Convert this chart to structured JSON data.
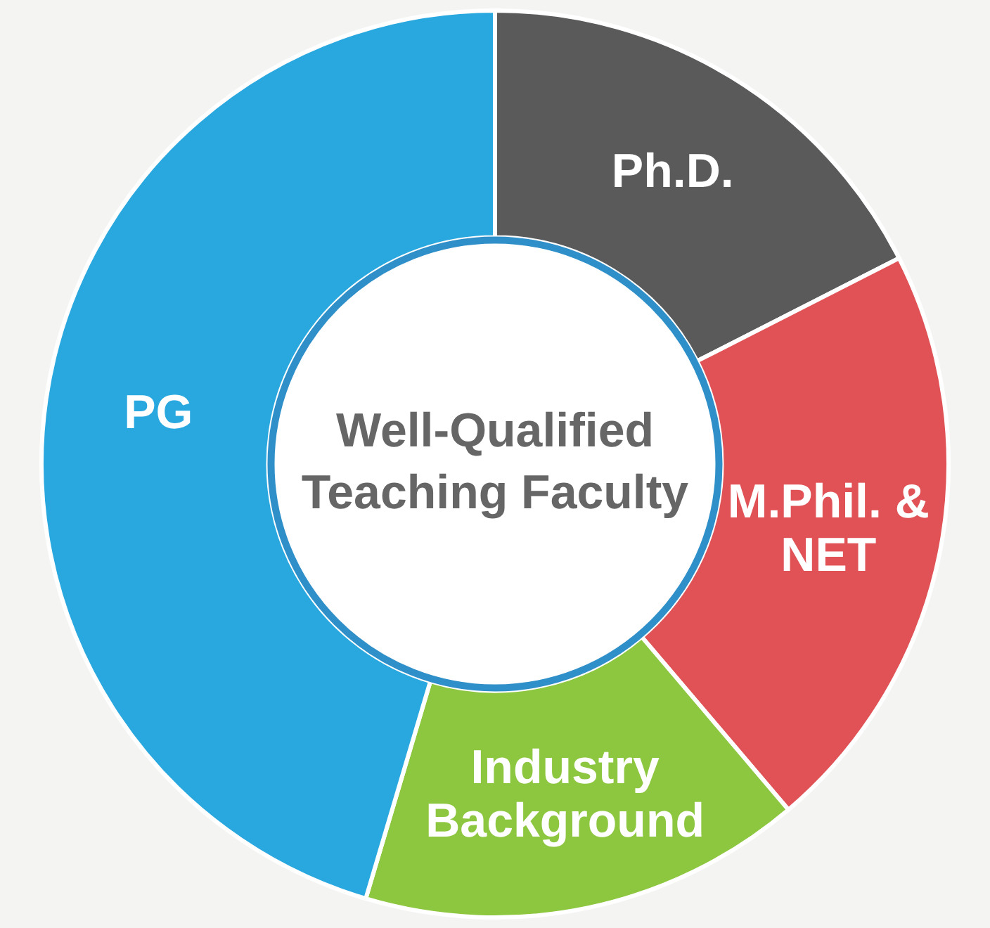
{
  "chart_data": {
    "type": "donut",
    "title": "Well-Qualified Teaching Faculty",
    "categories": [
      "Ph.D.",
      "M.Phil. & NET",
      "Industry Background",
      "PG"
    ],
    "values": [
      17.5,
      21.3,
      15.8,
      45.4
    ],
    "colors": [
      "#5a5a5a",
      "#e05256",
      "#8dc63f",
      "#29a8e0"
    ],
    "legend": false
  }
}
